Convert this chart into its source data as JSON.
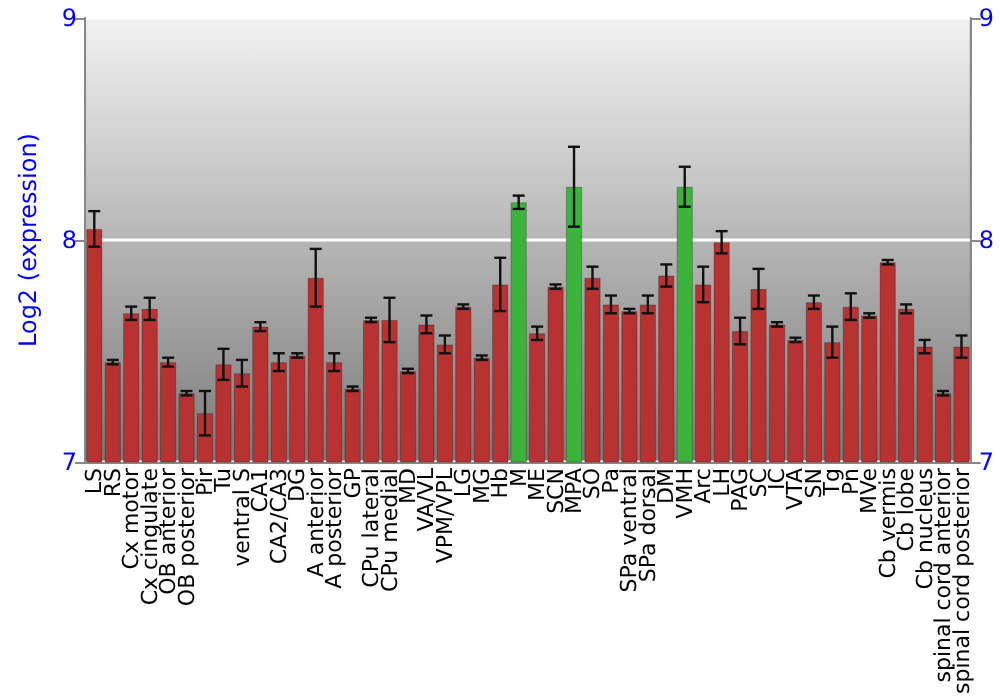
{
  "chart_data": {
    "type": "bar",
    "ylabel": "Log2 (expression)",
    "categories": [
      "LS",
      "RS",
      "Cx motor",
      "Cx cingulate",
      "OB anterior",
      "OB posterior",
      "Pir",
      "Tu",
      "ventral S",
      "CA1",
      "CA2/CA3",
      "DG",
      "A anterior",
      "A posterior",
      "GP",
      "CPu lateral",
      "CPu medial",
      "MD",
      "VA/VL",
      "VPM/VPL",
      "LG",
      "MG",
      "Hb",
      "M",
      "ME",
      "SCN",
      "MPA",
      "SO",
      "Pa",
      "SPa ventral",
      "SPa dorsal",
      "DM",
      "VMH",
      "Arc",
      "LH",
      "PAG",
      "SC",
      "IC",
      "VTA",
      "SN",
      "Tg",
      "Pn",
      "MVe",
      "Cb vermis",
      "Cb lobe",
      "Cb nucleus",
      "spinal cord anterior",
      "spinal cord posterior"
    ],
    "values": [
      8.05,
      7.45,
      7.67,
      7.69,
      7.45,
      7.31,
      7.22,
      7.44,
      7.4,
      7.61,
      7.45,
      7.48,
      7.83,
      7.45,
      7.33,
      7.64,
      7.64,
      7.41,
      7.62,
      7.53,
      7.7,
      7.47,
      7.8,
      8.17,
      7.58,
      7.79,
      8.24,
      7.83,
      7.71,
      7.68,
      7.71,
      7.84,
      8.24,
      7.8,
      7.99,
      7.59,
      7.78,
      7.62,
      7.55,
      7.72,
      7.54,
      7.7,
      7.66,
      7.9,
      7.69,
      7.52,
      7.31,
      7.52
    ],
    "errors": [
      0.08,
      0.01,
      0.03,
      0.05,
      0.02,
      0.01,
      0.1,
      0.07,
      0.06,
      0.02,
      0.04,
      0.01,
      0.13,
      0.04,
      0.01,
      0.01,
      0.1,
      0.01,
      0.04,
      0.04,
      0.01,
      0.01,
      0.12,
      0.03,
      0.03,
      0.01,
      0.18,
      0.05,
      0.04,
      0.01,
      0.04,
      0.05,
      0.09,
      0.08,
      0.05,
      0.06,
      0.09,
      0.01,
      0.01,
      0.03,
      0.07,
      0.06,
      0.01,
      0.01,
      0.02,
      0.03,
      0.01,
      0.05
    ],
    "colors": [
      "#b83232",
      "#b83232",
      "#b83232",
      "#b83232",
      "#b83232",
      "#b83232",
      "#b83232",
      "#b83232",
      "#b83232",
      "#b83232",
      "#b83232",
      "#b83232",
      "#b83232",
      "#b83232",
      "#b83232",
      "#b83232",
      "#b83232",
      "#b83232",
      "#b83232",
      "#b83232",
      "#b83232",
      "#b83232",
      "#b83232",
      "#3cb43c",
      "#b83232",
      "#b83232",
      "#3cb43c",
      "#b83232",
      "#b83232",
      "#b83232",
      "#b83232",
      "#b83232",
      "#3cb43c",
      "#b83232",
      "#b83232",
      "#b83232",
      "#b83232",
      "#b83232",
      "#b83232",
      "#b83232",
      "#b83232",
      "#b83232",
      "#b83232",
      "#b83232",
      "#b83232",
      "#b83232",
      "#b83232",
      "#b83232"
    ],
    "ylim": [
      7,
      9
    ],
    "yticks": [
      7,
      8,
      9
    ],
    "y2lim": [
      7,
      9
    ],
    "y2ticks": [
      7,
      8,
      9
    ],
    "grid": "y"
  }
}
